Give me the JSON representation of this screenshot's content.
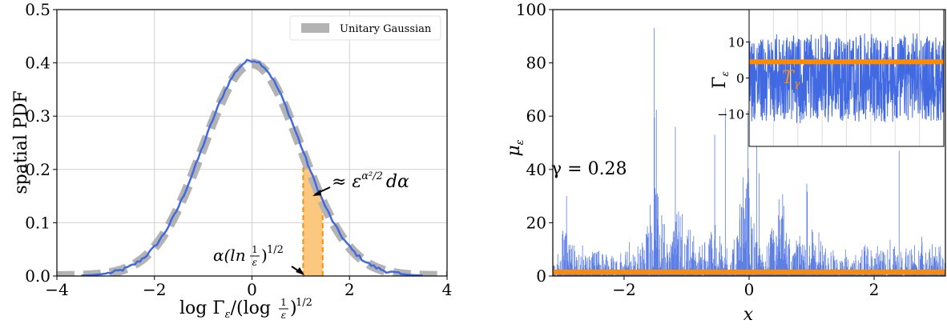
{
  "colors": {
    "blue": "#4169e1",
    "gray": "#b3b3b3",
    "orange": "#ff8c00",
    "fill_orange": "#fcc880",
    "grid": "#d0d0d0"
  },
  "chart_data": [
    {
      "type": "line",
      "xlabel": "log Γ_ε/(log 1/ε)^{1/2}",
      "ylabel": "spatial PDF",
      "xlim": [
        -4,
        4
      ],
      "ylim": [
        0,
        0.5
      ],
      "xticks": [
        "−4",
        "−2",
        "0",
        "2",
        "4"
      ],
      "yticks": [
        "0.0",
        "0.1",
        "0.2",
        "0.3",
        "0.4",
        "0.5"
      ],
      "grid": true,
      "legend": {
        "placement": "top-right",
        "entries": [
          "Unitary Gaussian"
        ]
      },
      "series": [
        {
          "name": "Unitary Gaussian",
          "style": "thick dashed gray",
          "function": "standard normal pdf"
        },
        {
          "style": "solid blue",
          "function": "empirical histogram close to standard normal, peak ≈ 0.41 at x ≈ 0"
        }
      ],
      "shaded_region": {
        "x_from": 1.05,
        "x_to": 1.45
      },
      "annotations": [
        {
          "text_main": "≈ ε",
          "superscript": "α²/2",
          "text_tail": "dα",
          "arrow_target": [
            1.25,
            0.15
          ]
        },
        {
          "text_main": "α(ln",
          "frac": "1/ε",
          "text_tail": ")",
          "superscript": "1/2",
          "arrow_target": [
            1.05,
            0.0
          ]
        }
      ]
    },
    {
      "type": "line",
      "xlabel": "x",
      "ylabel": "μ_ε",
      "xlim": [
        -3.14,
        3.14
      ],
      "ylim": [
        0,
        100
      ],
      "xticks": [
        "−2",
        "0",
        "2"
      ],
      "yticks": [
        "0",
        "20",
        "40",
        "60",
        "80",
        "100"
      ],
      "grid": false,
      "annotation": "γ = 0.28",
      "series": [
        {
          "style": "thin blue spikes",
          "description": "multiplicative chaos measure, mostly below 20 with peaks up to ≈ 93 near x ≈ −1.5"
        },
        {
          "style": "thick orange horizontal",
          "y": 1.5
        }
      ],
      "inset": {
        "ylabel": "Γ_ε",
        "ylim": [
          -19,
          19
        ],
        "yticks": [
          "−10",
          "0",
          "10"
        ],
        "series": [
          {
            "style": "blue noise",
            "description": "log-correlated Gaussian field fluctuating roughly between −15 and 17"
          },
          {
            "style": "orange horizontal",
            "y": 4.5,
            "label": "T_γ"
          }
        ]
      }
    }
  ],
  "left_text": {
    "xlabel_log": "log Γ",
    "xlabel_eps": "ε",
    "xlabel_slash": "/(log",
    "xlabel_frac_num": "1",
    "xlabel_frac_den": "ε",
    "xlabel_close": ")",
    "xlabel_sup": "1/2",
    "ylabel": "spatial PDF",
    "legend": "Unitary Gaussian",
    "ann1_main": "≈ ε",
    "ann1_sup": "α²/2",
    "ann1_tail": "dα",
    "ann2_main": "α(ln",
    "ann2_num": "1",
    "ann2_den": "ε",
    "ann2_close": ")",
    "ann2_sup": "1/2"
  },
  "right_text": {
    "xlabel": "x",
    "ylabel_mu": "μ",
    "ylabel_eps": "ε",
    "gamma": "γ = 0.28",
    "inset_ylabel": "Γ",
    "inset_ylabel_eps": "ε",
    "T_label": "T",
    "T_sub": "γ"
  }
}
